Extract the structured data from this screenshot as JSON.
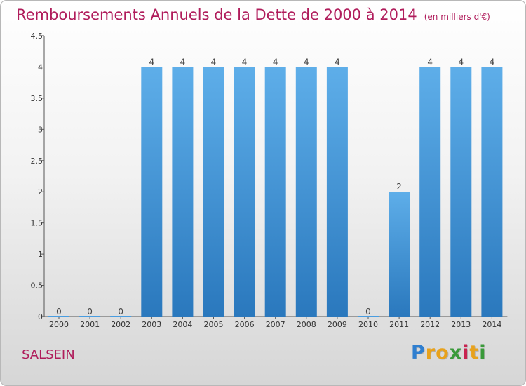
{
  "header": {
    "title": "Remboursements Annuels de la Dette de 2000 à 2014",
    "unit": "(en milliers d'€)"
  },
  "commune": "SALSEIN",
  "logo": {
    "letters": [
      "P",
      "r",
      "o",
      "x",
      "i",
      "t",
      "i"
    ],
    "colors": [
      "#2f7fd0",
      "#e8a21c",
      "#e8a21c",
      "#3a9a3a",
      "#c8234f",
      "#e8a21c",
      "#3a9a3a"
    ]
  },
  "chart_data": {
    "type": "bar",
    "title": "Remboursements Annuels de la Dette de 2000 à 2014",
    "xlabel": "",
    "ylabel": "",
    "categories": [
      "2000",
      "2001",
      "2002",
      "2003",
      "2004",
      "2005",
      "2006",
      "2007",
      "2008",
      "2009",
      "2010",
      "2011",
      "2012",
      "2013",
      "2014"
    ],
    "values": [
      0,
      0,
      0,
      4,
      4,
      4,
      4,
      4,
      4,
      4,
      0,
      2,
      4,
      4,
      4
    ],
    "value_labels": [
      "0",
      "0",
      "0",
      "4",
      "4",
      "4",
      "4",
      "4",
      "4",
      "4",
      "0",
      "2",
      "4",
      "4",
      "4"
    ],
    "ylim": [
      0,
      4.5
    ],
    "yticks": [
      0,
      0.5,
      1,
      1.5,
      2,
      2.5,
      3,
      3.5,
      4,
      4.5
    ],
    "ytick_labels": [
      "0",
      "0.5",
      "1",
      "1.5",
      "2",
      "2.5",
      "3",
      "3.5",
      "4",
      "4.5"
    ],
    "bar_color": "#4a9de0",
    "grid": false
  }
}
